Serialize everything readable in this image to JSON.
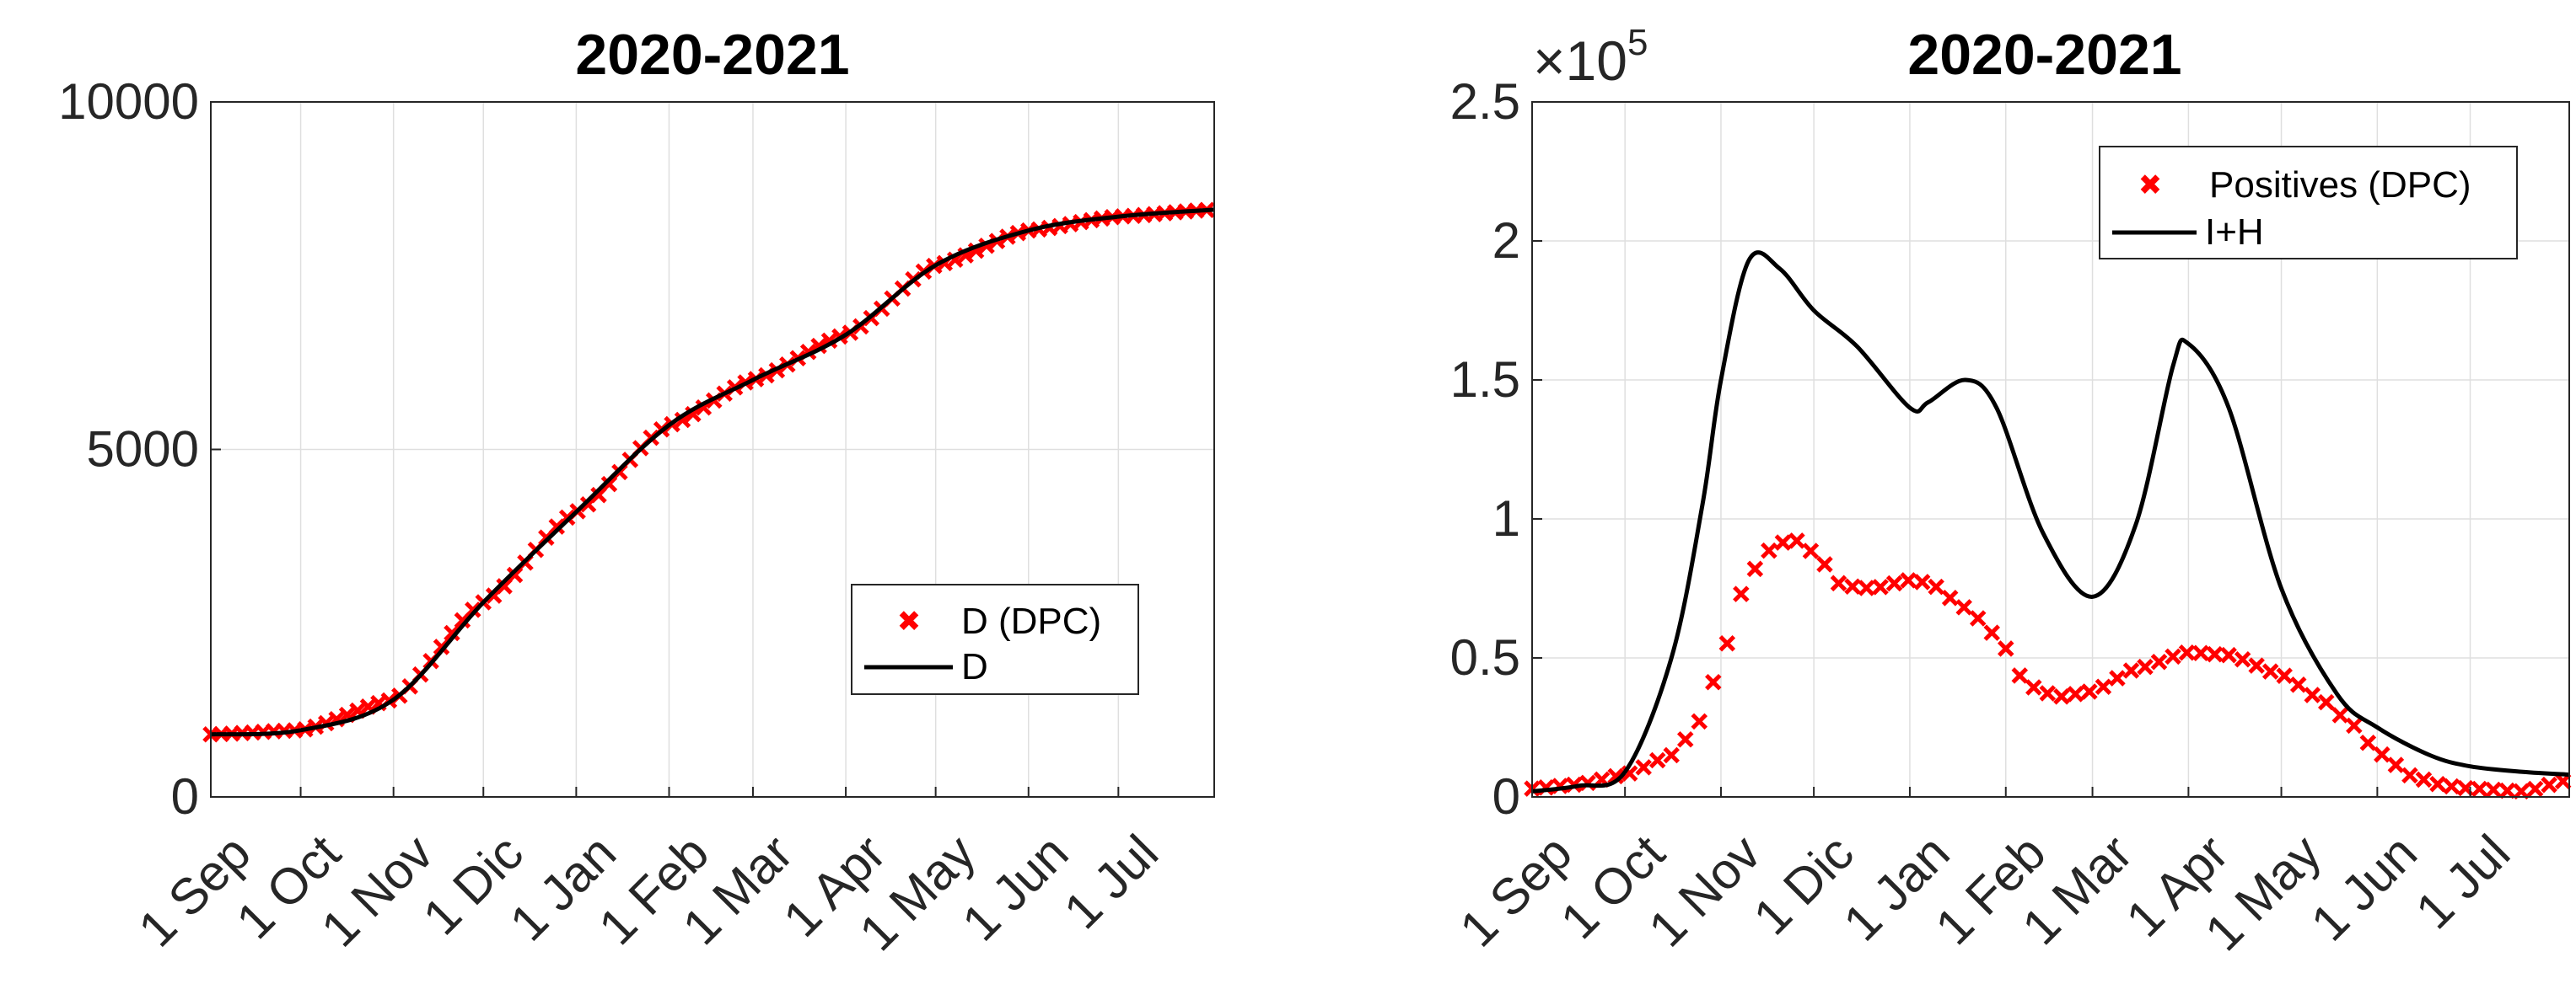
{
  "chart_data": [
    {
      "type": "line",
      "title": "2020-2021",
      "xlabel": "",
      "ylabel": "",
      "ylim": [
        0,
        10000
      ],
      "y_ticks": [
        0,
        5000,
        10000
      ],
      "y_tick_labels": [
        "0",
        "5000",
        "10000"
      ],
      "x_tick_labels": [
        "1 Sep",
        "1 Oct",
        "1 Nov",
        "1 Dic",
        "1 Jan",
        "1 Feb",
        "1 Mar",
        "1 Apr",
        "1 May",
        "1 Jun",
        "1 Jul"
      ],
      "grid": true,
      "legend_position": "center-right",
      "series": [
        {
          "name": "D (DPC)",
          "style": "markers",
          "color": "#ff0000",
          "x": [
            0,
            30,
            61,
            91,
            122,
            153,
            181,
            212,
            242,
            273,
            303,
            335
          ],
          "values": [
            900,
            960,
            1400,
            2800,
            4100,
            5350,
            6000,
            6650,
            7650,
            8150,
            8350,
            8450
          ]
        },
        {
          "name": "D",
          "style": "line",
          "color": "#000000",
          "x": [
            0,
            30,
            61,
            91,
            122,
            153,
            181,
            212,
            242,
            273,
            303,
            335
          ],
          "values": [
            900,
            960,
            1400,
            2800,
            4100,
            5350,
            6000,
            6650,
            7650,
            8150,
            8350,
            8450
          ]
        }
      ]
    },
    {
      "type": "line",
      "title": "2020-2021",
      "xlabel": "",
      "ylabel": "",
      "ylim": [
        0,
        250000
      ],
      "y_scale_exponent": "10",
      "y_scale_power": "5",
      "y_scale_prefix": "×",
      "y_ticks": [
        0,
        50000,
        100000,
        150000,
        200000,
        250000
      ],
      "y_tick_labels": [
        "0",
        "0.5",
        "1",
        "1.5",
        "2",
        "2.5"
      ],
      "x_tick_labels": [
        "1 Sep",
        "1 Oct",
        "1 Nov",
        "1 Dic",
        "1 Jan",
        "1 Feb",
        "1 Mar",
        "1 Apr",
        "1 May",
        "1 Jun",
        "1 Jul"
      ],
      "grid": true,
      "legend_position": "top-right",
      "series": [
        {
          "name": "Positives (DPC)",
          "style": "markers",
          "color": "#ff0000",
          "x": [
            0,
            15,
            30,
            45,
            55,
            61,
            70,
            78,
            84,
            91,
            100,
            110,
            122,
            128,
            140,
            150,
            160,
            170,
            181,
            195,
            212,
            225,
            242,
            255,
            265,
            273,
            285,
            295,
            303,
            320,
            335
          ],
          "values": [
            3000,
            4500,
            8000,
            15000,
            28000,
            50000,
            80000,
            90000,
            93000,
            88000,
            76000,
            75000,
            78000,
            77000,
            68000,
            58000,
            40000,
            36000,
            38000,
            46000,
            52000,
            51000,
            44000,
            35000,
            26000,
            16000,
            7000,
            4000,
            3000,
            2000,
            6000
          ]
        },
        {
          "name": "I+H",
          "style": "line",
          "color": "#000000",
          "x": [
            0,
            15,
            30,
            45,
            55,
            61,
            70,
            80,
            91,
            105,
            122,
            128,
            140,
            150,
            165,
            181,
            195,
            207,
            212,
            225,
            242,
            260,
            273,
            290,
            303,
            320,
            335
          ],
          "values": [
            2000,
            4000,
            9000,
            50000,
            105000,
            150000,
            193000,
            190000,
            175000,
            162000,
            140000,
            142000,
            150000,
            140000,
            95000,
            72000,
            98000,
            155000,
            163000,
            140000,
            75000,
            37000,
            25000,
            15000,
            11000,
            9000,
            8000
          ]
        }
      ]
    }
  ]
}
